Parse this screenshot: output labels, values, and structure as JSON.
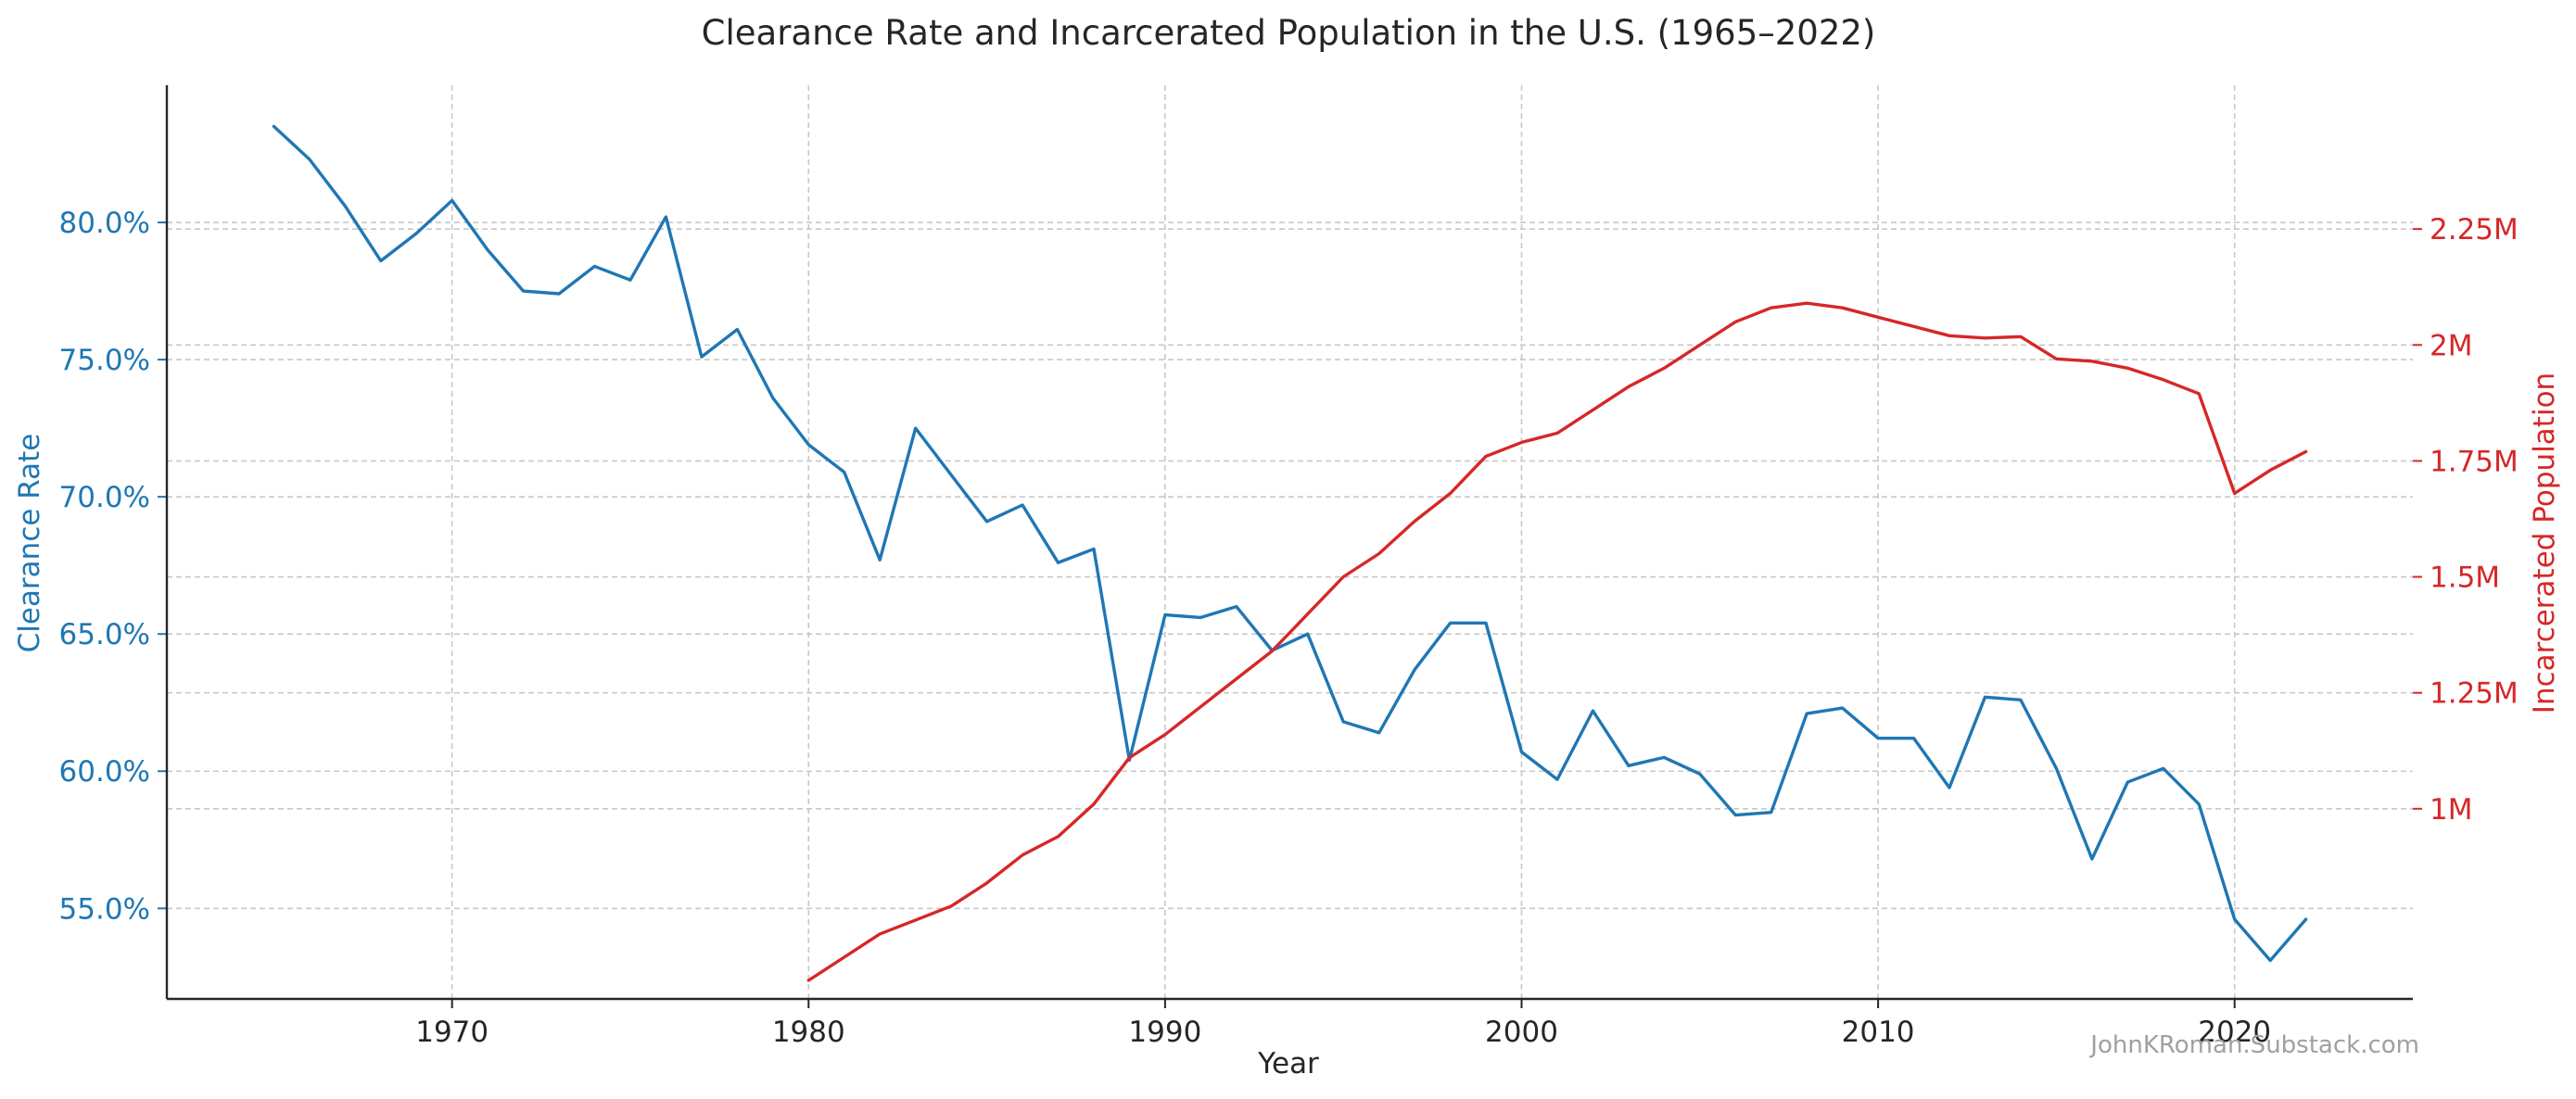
{
  "chart_data": {
    "type": "line",
    "title": "Clearance Rate and Incarcerated Population in the U.S. (1965–2022)",
    "xlabel": "Year",
    "xlim": [
      1962,
      2025
    ],
    "x_ticks": [
      1970,
      1980,
      1990,
      2000,
      2010,
      2020
    ],
    "grid": true,
    "watermark": "JohnKRoman.Substack.com",
    "axes": {
      "left": {
        "label": "Clearance Rate",
        "color": "#1f77b4",
        "ylim": [
          0.517,
          0.85
        ],
        "ticks": [
          0.55,
          0.6,
          0.65,
          0.7,
          0.75,
          0.8
        ],
        "tick_labels": [
          "55.0%",
          "60.0%",
          "65.0%",
          "70.0%",
          "75.0%",
          "80.0%"
        ]
      },
      "right": {
        "label": "Incarcerated Population",
        "color": "#d62728",
        "ylim": [
          590000,
          2560000
        ],
        "ticks": [
          1000000,
          1250000,
          1500000,
          1750000,
          2000000,
          2250000
        ],
        "tick_labels": [
          "1M",
          "1.25M",
          "1.5M",
          "1.75M",
          "2M",
          "2.25M"
        ]
      }
    },
    "series": [
      {
        "name": "Clearance Rate",
        "axis": "left",
        "color": "#1f77b4",
        "x": [
          1965,
          1966,
          1967,
          1968,
          1969,
          1970,
          1971,
          1972,
          1973,
          1974,
          1975,
          1976,
          1977,
          1978,
          1979,
          1980,
          1981,
          1982,
          1983,
          1984,
          1985,
          1986,
          1987,
          1988,
          1989,
          1990,
          1991,
          1992,
          1993,
          1994,
          1995,
          1996,
          1997,
          1998,
          1999,
          2000,
          2001,
          2002,
          2003,
          2004,
          2005,
          2006,
          2007,
          2008,
          2009,
          2010,
          2011,
          2012,
          2013,
          2014,
          2015,
          2016,
          2017,
          2018,
          2019,
          2020,
          2021,
          2022
        ],
        "values": [
          0.835,
          0.823,
          0.806,
          0.786,
          0.796,
          0.808,
          0.79,
          0.775,
          0.774,
          0.784,
          0.779,
          0.802,
          0.751,
          0.761,
          0.736,
          0.719,
          0.709,
          0.677,
          0.725,
          0.708,
          0.691,
          0.697,
          0.676,
          0.681,
          0.604,
          0.657,
          0.656,
          0.66,
          0.644,
          0.65,
          0.618,
          0.614,
          0.637,
          0.654,
          0.654,
          0.607,
          0.597,
          0.622,
          0.602,
          0.605,
          0.599,
          0.584,
          0.585,
          0.621,
          0.623,
          0.612,
          0.612,
          0.594,
          0.627,
          0.626,
          0.601,
          0.568,
          0.596,
          0.601,
          0.588,
          0.546,
          0.531,
          0.546
        ]
      },
      {
        "name": "Incarcerated Population",
        "axis": "right",
        "color": "#d62728",
        "x": [
          1980,
          1981,
          1982,
          1983,
          1984,
          1985,
          1986,
          1987,
          1988,
          1989,
          1990,
          1991,
          1992,
          1993,
          1994,
          1995,
          1996,
          1997,
          1998,
          1999,
          2000,
          2001,
          2002,
          2003,
          2004,
          2005,
          2006,
          2007,
          2008,
          2009,
          2010,
          2011,
          2012,
          2013,
          2014,
          2015,
          2016,
          2017,
          2018,
          2019,
          2020,
          2021,
          2022
        ],
        "values": [
          630000,
          680000,
          730000,
          760000,
          790000,
          840000,
          900000,
          940000,
          1010000,
          1110000,
          1160000,
          1220000,
          1280000,
          1340000,
          1420000,
          1500000,
          1550000,
          1620000,
          1680000,
          1760000,
          1790000,
          1810000,
          1860000,
          1910000,
          1950000,
          2000000,
          2050000,
          2080000,
          2090000,
          2080000,
          2060000,
          2040000,
          2020000,
          2015000,
          2018000,
          1970000,
          1965000,
          1950000,
          1925000,
          1895000,
          1680000,
          1730000,
          1770000
        ]
      }
    ]
  }
}
